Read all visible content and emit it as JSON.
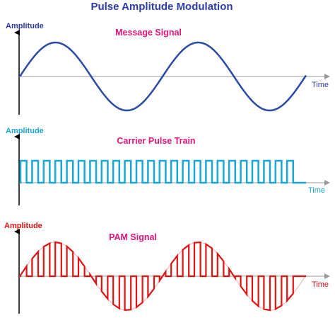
{
  "title": "Pulse Amplitude Modulation",
  "colors": {
    "title": "#2e3da8",
    "panel_title": "#e0157b",
    "message": "#2a4aa3",
    "carrier": "#1aa7d8",
    "pam": "#e11212",
    "pam_envelope": "#f2b8b8",
    "time_axis": "#9a9a9a",
    "amplitude_axis": "#000000"
  },
  "panels": [
    {
      "id": "message",
      "heading": "Message Signal",
      "y_axis_label": "Amplitude",
      "x_axis_label": "Time",
      "waveform": "sine"
    },
    {
      "id": "carrier",
      "heading": "Carrier Pulse Train",
      "y_axis_label": "Amplitude",
      "x_axis_label": "Time",
      "waveform": "pulse-train"
    },
    {
      "id": "pam",
      "heading": "PAM Signal",
      "y_axis_label": "Amplitude",
      "x_axis_label": "Time",
      "waveform": "pam"
    }
  ]
}
